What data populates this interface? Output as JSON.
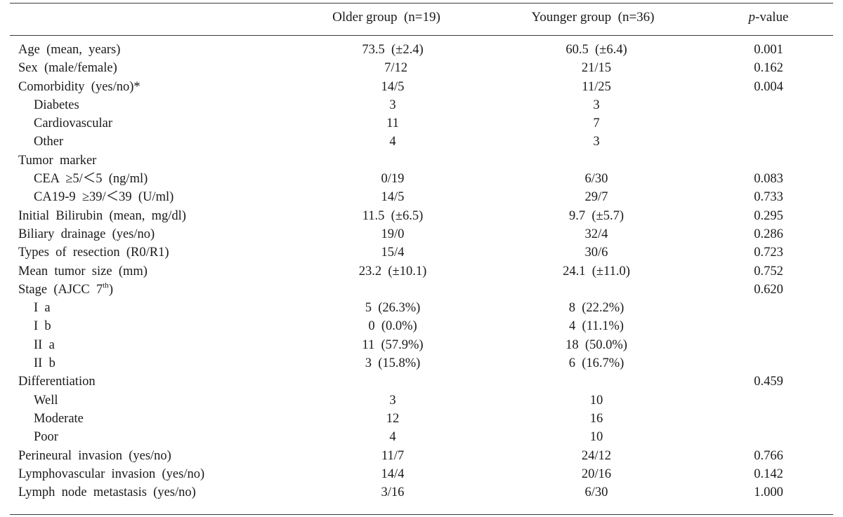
{
  "table": {
    "headers": {
      "older": "Older group  (n=19)",
      "younger": "Younger group  (n=36)",
      "p_italic": "p",
      "p_rest": "-value"
    },
    "rows": [
      {
        "label": "Age  (mean,  years)",
        "older": "73.5  (±2.4)",
        "younger": "60.5  (±6.4)",
        "p": "0.001",
        "sub": false
      },
      {
        "label": "Sex  (male/female)",
        "older": "  7/12",
        "younger": "21/15",
        "p": "0.162",
        "sub": false
      },
      {
        "label": "Comorbidity  (yes/no)*",
        "older": "14/5",
        "younger": "11/25",
        "p": "0.004",
        "sub": false
      },
      {
        "label": "Diabetes",
        "older": "3",
        "younger": "3",
        "p": "",
        "sub": true
      },
      {
        "label": "Cardiovascular",
        "older": "11",
        "younger": "7",
        "p": "",
        "sub": true
      },
      {
        "label": "Other",
        "older": "4",
        "younger": "3",
        "p": "",
        "sub": true
      },
      {
        "label": "Tumor  marker",
        "older": "",
        "younger": "",
        "p": "",
        "sub": false
      },
      {
        "label": "CEA  ≥5/＜5  (ng/ml)",
        "older": "0/19",
        "younger": "6/30",
        "p": "0.083",
        "sub": true
      },
      {
        "label": "CA19-9  ≥39/＜39  (U/ml)",
        "older": "14/5",
        "younger": "29/7",
        "p": "0.733",
        "sub": true
      },
      {
        "label": "Initial  Bilirubin  (mean,  mg/dl)",
        "older": "11.5  (±6.5)",
        "younger": "9.7  (±5.7)",
        "p": "0.295",
        "sub": false
      },
      {
        "label": "Biliary  drainage  (yes/no)",
        "older": "19/0",
        "younger": "32/4",
        "p": "0.286",
        "sub": false
      },
      {
        "label": "Types  of  resection  (R0/R1)",
        "older": "15/4",
        "younger": "30/6",
        "p": "0.723",
        "sub": false
      },
      {
        "label": "Mean  tumor  size  (mm)",
        "older": "23.2  (±10.1)",
        "younger": "24.1  (±11.0)",
        "p": "0.752",
        "sub": false
      },
      {
        "label": "Stage  (AJCC  7",
        "label_sup": "th",
        "label_end": ")",
        "older": "",
        "younger": "",
        "p": "0.620",
        "sub": false
      },
      {
        "label": "I  a",
        "older": "5  (26.3%)",
        "younger": "8  (22.2%)",
        "p": "",
        "sub": true
      },
      {
        "label": "I  b",
        "older": "0  (0.0%)",
        "younger": "4  (11.1%)",
        "p": "",
        "sub": true
      },
      {
        "label": "II  a",
        "older": "11  (57.9%)",
        "younger": "18  (50.0%)",
        "p": "",
        "sub": true
      },
      {
        "label": "II  b",
        "older": "3  (15.8%)",
        "younger": "6  (16.7%)",
        "p": "",
        "sub": true
      },
      {
        "label": "Differentiation",
        "older": "",
        "younger": "",
        "p": "0.459",
        "sub": false
      },
      {
        "label": "Well",
        "older": "3",
        "younger": "10",
        "p": "",
        "sub": true
      },
      {
        "label": "Moderate",
        "older": "12",
        "younger": "16",
        "p": "",
        "sub": true
      },
      {
        "label": "Poor",
        "older": "4",
        "younger": "10",
        "p": "",
        "sub": true
      },
      {
        "label": "Perineural  invasion  (yes/no)",
        "older": "11/7",
        "younger": "24/12",
        "p": "0.766",
        "sub": false
      },
      {
        "label": "Lymphovascular  invasion  (yes/no)",
        "older": "14/4",
        "younger": "20/16",
        "p": "0.142",
        "sub": false
      },
      {
        "label": "Lymph  node  metastasis  (yes/no)",
        "older": "3/16",
        "younger": "6/30",
        "p": "1.000",
        "sub": false
      }
    ]
  }
}
